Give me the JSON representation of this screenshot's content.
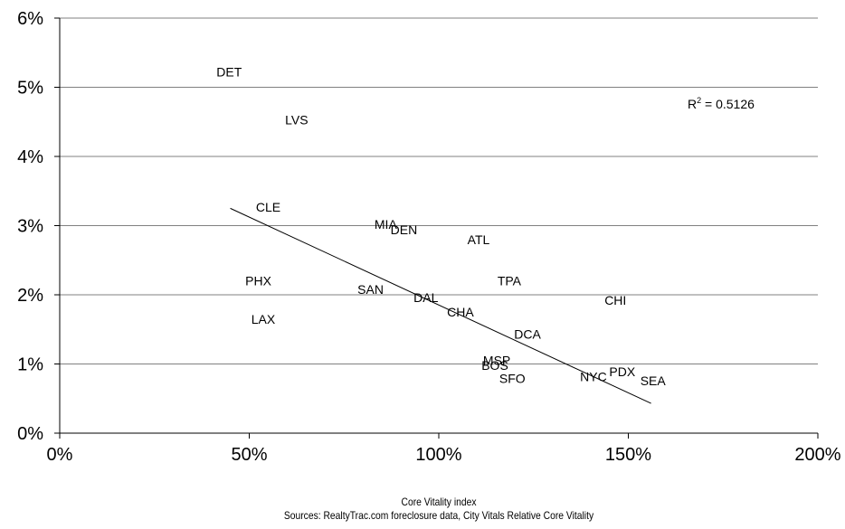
{
  "chart_data": {
    "type": "scatter",
    "xlabel": "Core Vitality index",
    "source": "Sources:  RealtyTrac.com foreclosure data, City Vitals Relative Core Vitality",
    "xlim": [
      0,
      200
    ],
    "ylim": [
      0,
      6
    ],
    "x_ticks": [
      "0%",
      "50%",
      "100%",
      "150%",
      "200%"
    ],
    "y_ticks": [
      "0%",
      "1%",
      "2%",
      "3%",
      "4%",
      "5%",
      "6%"
    ],
    "grid": "horizontal",
    "annotation": {
      "text": "R",
      "sup": "2",
      "rest": " = 0.5126"
    },
    "trendline": {
      "x": [
        45,
        156
      ],
      "y": [
        3.25,
        0.43
      ]
    },
    "points": [
      {
        "label": "DET",
        "x": 44.7,
        "y": 5.22
      },
      {
        "label": "LVS",
        "x": 62.5,
        "y": 4.53
      },
      {
        "label": "CLE",
        "x": 55,
        "y": 3.27
      },
      {
        "label": "MIA",
        "x": 86,
        "y": 3.02
      },
      {
        "label": "DEN",
        "x": 90.8,
        "y": 2.94
      },
      {
        "label": "ATL",
        "x": 110.5,
        "y": 2.8
      },
      {
        "label": "PHX",
        "x": 52.4,
        "y": 2.2
      },
      {
        "label": "TPA",
        "x": 118.6,
        "y": 2.2
      },
      {
        "label": "SAN",
        "x": 82,
        "y": 2.08
      },
      {
        "label": "DAL",
        "x": 96.6,
        "y": 1.96
      },
      {
        "label": "CHI",
        "x": 146.6,
        "y": 1.92
      },
      {
        "label": "LAX",
        "x": 53.7,
        "y": 1.65
      },
      {
        "label": "CHA",
        "x": 105.7,
        "y": 1.75
      },
      {
        "label": "DCA",
        "x": 123.4,
        "y": 1.43
      },
      {
        "label": "MSP",
        "x": 115.3,
        "y": 1.05
      },
      {
        "label": "BOS",
        "x": 114.8,
        "y": 0.98
      },
      {
        "label": "SFO",
        "x": 119.4,
        "y": 0.79
      },
      {
        "label": "NYC",
        "x": 140.8,
        "y": 0.82
      },
      {
        "label": "PDX",
        "x": 148.4,
        "y": 0.89
      },
      {
        "label": "SEA",
        "x": 156.5,
        "y": 0.76
      }
    ]
  }
}
